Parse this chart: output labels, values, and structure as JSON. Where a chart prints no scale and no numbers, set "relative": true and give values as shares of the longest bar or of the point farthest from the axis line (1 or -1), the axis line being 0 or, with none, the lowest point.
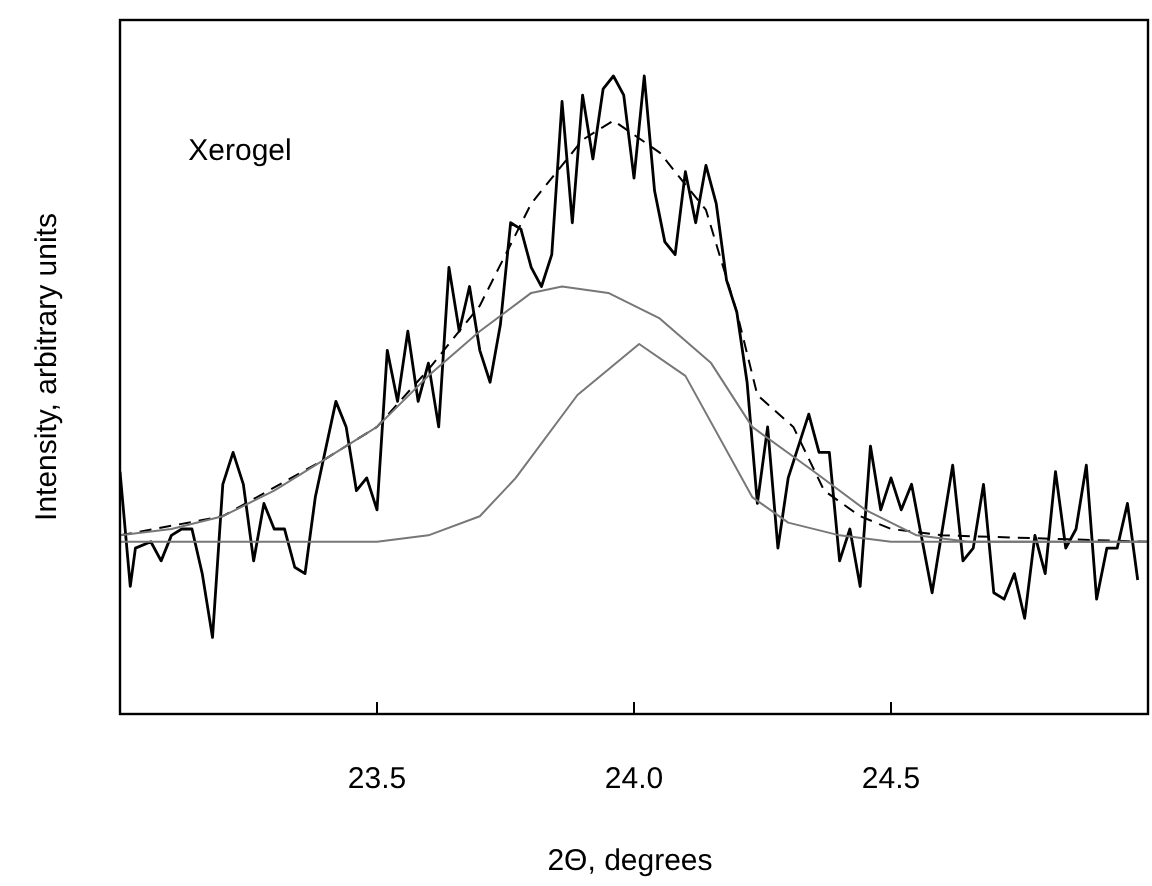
{
  "chart_data": {
    "type": "line",
    "xlabel": "2Θ, degrees",
    "ylabel": "Intensity, arbitrary units",
    "annotations": [
      "Xerogel"
    ],
    "relative": true,
    "xlim": [
      23.0,
      25.0
    ],
    "xticks": [
      {
        "value": 23.5,
        "label": "23.5"
      },
      {
        "value": 24.0,
        "label": "24.0"
      },
      {
        "value": 24.5,
        "label": "24.5"
      }
    ],
    "grid": false,
    "marker": "none",
    "series": [
      {
        "color": "#000000",
        "line_style": "solid",
        "x": [
          23.0,
          23.02,
          23.03,
          23.06,
          23.08,
          23.1,
          23.12,
          23.14,
          23.16,
          23.18,
          23.2,
          23.22,
          23.24,
          23.26,
          23.28,
          23.3,
          23.32,
          23.34,
          23.36,
          23.38,
          23.42,
          23.44,
          23.46,
          23.48,
          23.5,
          23.52,
          23.54,
          23.56,
          23.58,
          23.6,
          23.62,
          23.64,
          23.66,
          23.68,
          23.7,
          23.72,
          23.74,
          23.76,
          23.78,
          23.8,
          23.82,
          23.84,
          23.86,
          23.88,
          23.9,
          23.92,
          23.94,
          23.96,
          23.98,
          24.0,
          24.02,
          24.04,
          24.06,
          24.08,
          24.1,
          24.12,
          24.14,
          24.16,
          24.18,
          24.2,
          24.22,
          24.24,
          24.26,
          24.28,
          24.3,
          24.34,
          24.36,
          24.38,
          24.4,
          24.42,
          24.44,
          24.46,
          24.48,
          24.5,
          24.52,
          24.54,
          24.58,
          24.62,
          24.64,
          24.66,
          24.68,
          24.7,
          24.72,
          24.74,
          24.76,
          24.78,
          24.8,
          24.82,
          24.84,
          24.86,
          24.88,
          24.9,
          24.92,
          24.94,
          24.96,
          24.98
        ],
        "values": [
          0.38,
          0.2,
          0.26,
          0.27,
          0.24,
          0.28,
          0.29,
          0.29,
          0.22,
          0.12,
          0.36,
          0.41,
          0.36,
          0.24,
          0.33,
          0.29,
          0.29,
          0.23,
          0.22,
          0.34,
          0.49,
          0.45,
          0.35,
          0.37,
          0.32,
          0.57,
          0.49,
          0.6,
          0.49,
          0.55,
          0.45,
          0.7,
          0.6,
          0.67,
          0.57,
          0.52,
          0.61,
          0.77,
          0.76,
          0.7,
          0.67,
          0.72,
          0.96,
          0.77,
          0.97,
          0.87,
          0.98,
          1.0,
          0.97,
          0.84,
          1.0,
          0.82,
          0.74,
          0.72,
          0.85,
          0.77,
          0.86,
          0.8,
          0.68,
          0.63,
          0.52,
          0.33,
          0.45,
          0.26,
          0.37,
          0.47,
          0.41,
          0.41,
          0.24,
          0.29,
          0.2,
          0.42,
          0.32,
          0.37,
          0.32,
          0.36,
          0.19,
          0.39,
          0.24,
          0.26,
          0.36,
          0.19,
          0.18,
          0.22,
          0.15,
          0.28,
          0.22,
          0.38,
          0.26,
          0.29,
          0.39,
          0.18,
          0.26,
          0.26,
          0.33,
          0.21
        ]
      },
      {
        "color": "#000000",
        "line_style": "dashed",
        "x": [
          23.0,
          23.2,
          23.4,
          23.5,
          23.6,
          23.7,
          23.8,
          23.9,
          23.96,
          24.05,
          24.14,
          24.2,
          24.24,
          24.31,
          24.37,
          24.44,
          24.5,
          24.6,
          25.0
        ],
        "values": [
          0.28,
          0.31,
          0.4,
          0.45,
          0.54,
          0.64,
          0.8,
          0.9,
          0.93,
          0.88,
          0.79,
          0.63,
          0.5,
          0.45,
          0.35,
          0.31,
          0.29,
          0.28,
          0.27
        ]
      },
      {
        "color": "#777777",
        "line_style": "solid",
        "x": [
          23.0,
          23.1,
          23.2,
          23.3,
          23.4,
          23.5,
          23.6,
          23.7,
          23.8,
          23.86,
          23.95,
          24.0,
          24.05,
          24.15,
          24.23,
          24.35,
          24.45,
          24.55,
          24.65,
          25.0
        ],
        "values": [
          0.28,
          0.29,
          0.31,
          0.35,
          0.4,
          0.45,
          0.53,
          0.6,
          0.66,
          0.67,
          0.66,
          0.64,
          0.62,
          0.55,
          0.45,
          0.38,
          0.32,
          0.28,
          0.27,
          0.27
        ]
      },
      {
        "color": "#777777",
        "line_style": "solid",
        "x": [
          23.0,
          23.5,
          23.6,
          23.7,
          23.77,
          23.89,
          24.01,
          24.1,
          24.23,
          24.3,
          24.4,
          24.5,
          25.0
        ],
        "values": [
          0.27,
          0.27,
          0.28,
          0.31,
          0.37,
          0.5,
          0.58,
          0.53,
          0.34,
          0.3,
          0.28,
          0.27,
          0.27
        ]
      }
    ]
  }
}
